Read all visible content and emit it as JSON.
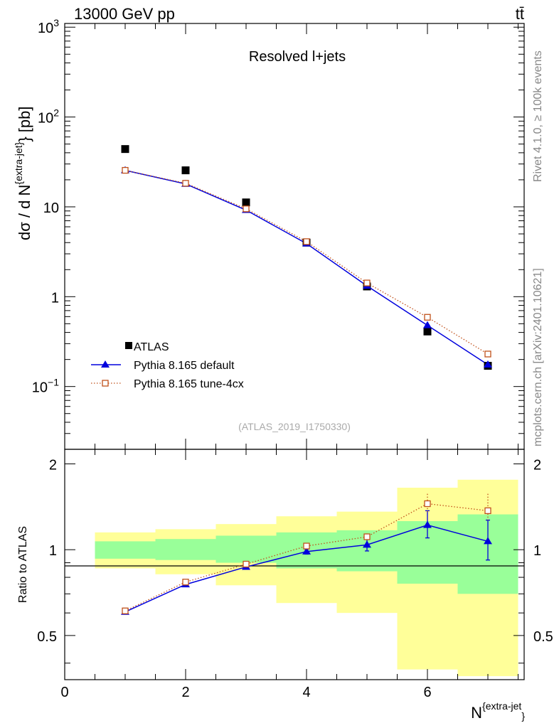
{
  "header": {
    "energy_label": "13000 GeV pp",
    "process_label": "tt̄"
  },
  "side_labels": {
    "rivet": "Rivet 4.1.0, ≥ 100k events",
    "mcplots": "mcplots.cern.ch [arXiv:2401.10621]"
  },
  "chart_data": {
    "main": {
      "type": "line",
      "title": "Resolved l+jets",
      "analysis_id": "(ATLAS_2019_I1750330)",
      "ylabel": "dσ / d N^{extra-jet} [pb]",
      "yscale": "log",
      "ylim": [
        0.02,
        1100
      ],
      "xlim": [
        0,
        7.6
      ],
      "y_tick_labels": [
        {
          "value": 1000,
          "base": "10",
          "exp": "3"
        },
        {
          "value": 100,
          "base": "10",
          "exp": "2"
        },
        {
          "value": 10,
          "base": "10",
          "exp": ""
        },
        {
          "value": 1,
          "base": "1",
          "exp": ""
        },
        {
          "value": 0.1,
          "base": "10",
          "exp": "−1"
        }
      ],
      "x": [
        1,
        2,
        3,
        4,
        5,
        6,
        7
      ],
      "series": [
        {
          "name": "ATLAS",
          "marker": "filled-square",
          "color": "#000000",
          "values": [
            44,
            25.5,
            11.2,
            4.0,
            1.3,
            0.41,
            0.17
          ]
        },
        {
          "name": "Pythia 8.165 default",
          "marker": "filled-triangle",
          "line": "solid",
          "color": "#0000dd",
          "values": [
            25.5,
            18.0,
            9.2,
            3.9,
            1.32,
            0.48,
            0.175
          ]
        },
        {
          "name": "Pythia 8.165 tune-4cx",
          "marker": "open-square",
          "line": "dotted",
          "color": "#c0501a",
          "values": [
            25.5,
            18.3,
            9.5,
            4.1,
            1.42,
            0.59,
            0.23
          ]
        }
      ]
    },
    "ratio": {
      "type": "line",
      "ylabel": "Ratio to ATLAS",
      "ylim": [
        0.35,
        2.25
      ],
      "y_ticks": [
        0.5,
        1,
        2
      ],
      "y_tick_labels": [
        "0.5",
        "1",
        "2"
      ],
      "x_ticks": [
        0,
        2,
        4,
        6
      ],
      "x_tick_labels": [
        "0",
        "2",
        "4",
        "6"
      ],
      "xlabel": "N^{extra-jet}",
      "bins": [
        {
          "lo": 0.5,
          "hi": 1.5,
          "stat_lo": 0.93,
          "stat_hi": 1.07,
          "tot_lo": 0.86,
          "tot_hi": 1.15
        },
        {
          "lo": 1.5,
          "hi": 2.5,
          "stat_lo": 0.92,
          "stat_hi": 1.09,
          "tot_lo": 0.82,
          "tot_hi": 1.18
        },
        {
          "lo": 2.5,
          "hi": 3.5,
          "stat_lo": 0.9,
          "stat_hi": 1.12,
          "tot_lo": 0.75,
          "tot_hi": 1.23
        },
        {
          "lo": 3.5,
          "hi": 4.5,
          "stat_lo": 0.86,
          "stat_hi": 1.15,
          "tot_lo": 0.65,
          "tot_hi": 1.31
        },
        {
          "lo": 4.5,
          "hi": 5.5,
          "stat_lo": 0.84,
          "stat_hi": 1.17,
          "tot_lo": 0.6,
          "tot_hi": 1.36
        },
        {
          "lo": 5.5,
          "hi": 6.5,
          "stat_lo": 0.76,
          "stat_hi": 1.26,
          "tot_lo": 0.38,
          "tot_hi": 1.65
        },
        {
          "lo": 6.5,
          "hi": 7.5,
          "stat_lo": 0.7,
          "stat_hi": 1.33,
          "tot_lo": 0.36,
          "tot_hi": 1.76
        }
      ],
      "stat_band_color": "#99ff99",
      "total_band_color": "#ffff99",
      "x": [
        1,
        2,
        3,
        4,
        5,
        6,
        7
      ],
      "series": [
        {
          "name": "Pythia 8.165 default",
          "marker": "filled-triangle",
          "line": "solid",
          "color": "#0000dd",
          "values": [
            0.605,
            0.755,
            0.87,
            0.985,
            1.04,
            1.22,
            1.07
          ],
          "err_lo": [
            0.0,
            0.0,
            0.0,
            0.02,
            0.05,
            0.12,
            0.15
          ],
          "err_hi": [
            0.0,
            0.0,
            0.0,
            0.02,
            0.05,
            0.15,
            0.2
          ]
        },
        {
          "name": "Pythia 8.165 tune-4cx",
          "marker": "open-square",
          "line": "dotted",
          "color": "#c0501a",
          "values": [
            0.61,
            0.77,
            0.89,
            1.03,
            1.11,
            1.45,
            1.37
          ],
          "err_lo": [
            0.0,
            0.0,
            0.0,
            0.0,
            0.03,
            0.1,
            0.1
          ],
          "err_hi": [
            0.0,
            0.0,
            0.0,
            0.0,
            0.03,
            0.12,
            0.2
          ]
        }
      ]
    }
  }
}
